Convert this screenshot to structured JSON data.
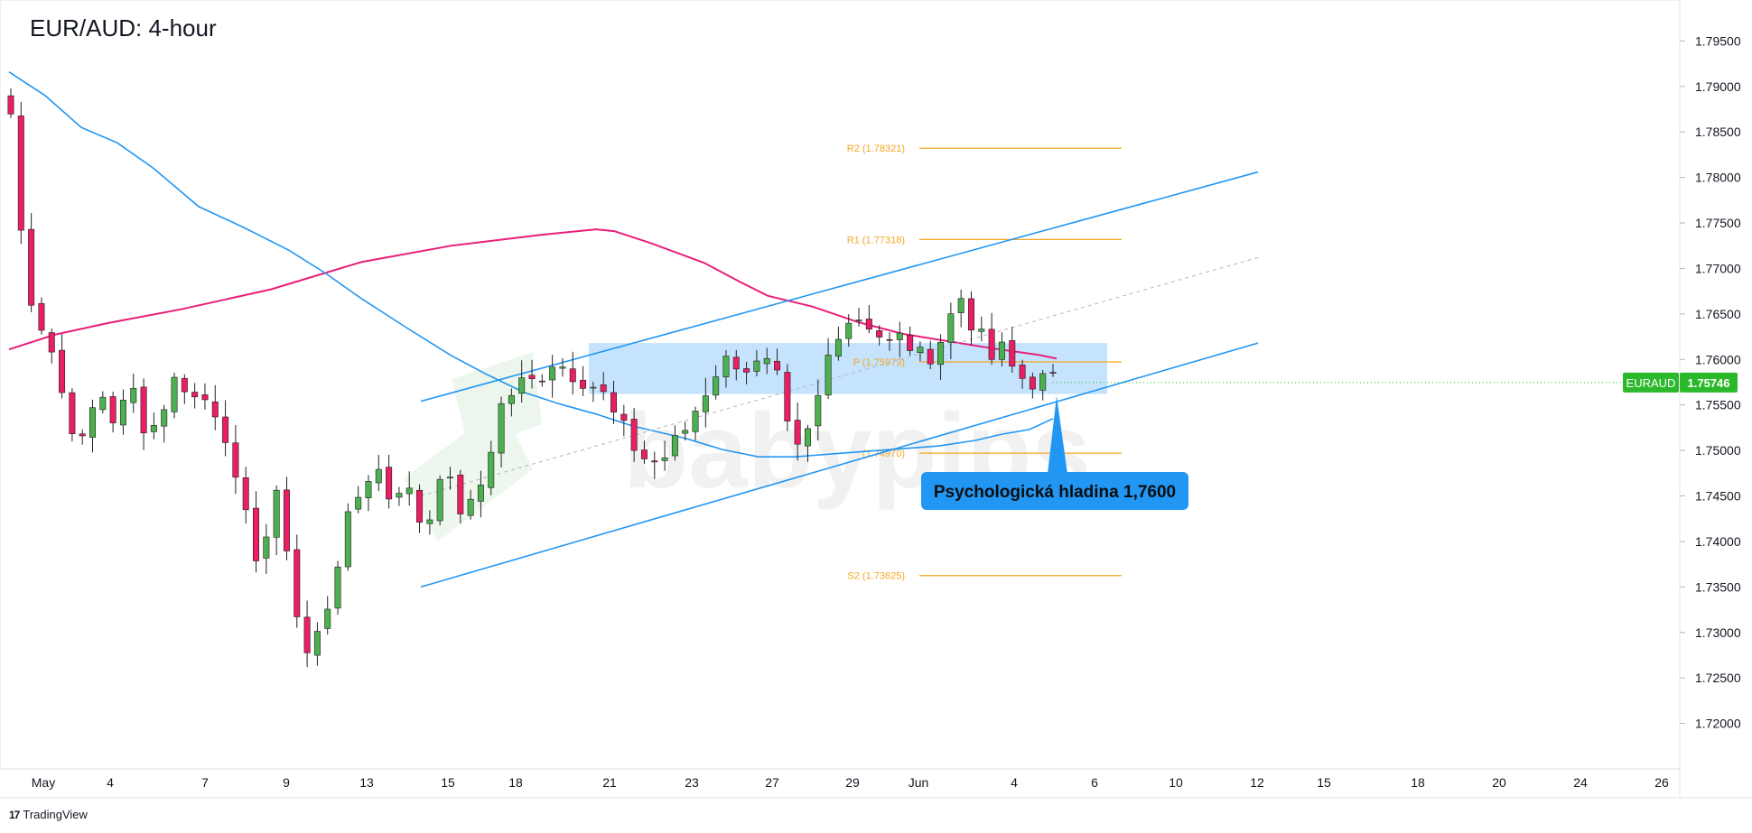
{
  "chart_data": {
    "type": "candlestick",
    "title": "EUR/AUD: 4-hour",
    "symbol_label": "EURAUD",
    "last_price": "1.75746",
    "ylim": [
      1.715,
      1.7995
    ],
    "y_ticks": [
      "1.72000",
      "1.72500",
      "1.73000",
      "1.73500",
      "1.74000",
      "1.74500",
      "1.75000",
      "1.75500",
      "1.76000",
      "1.76500",
      "1.77000",
      "1.77500",
      "1.78000",
      "1.78500",
      "1.79000",
      "1.79500"
    ],
    "x_ticks": [
      "May",
      "4",
      "7",
      "9",
      "13",
      "15",
      "18",
      "21",
      "23",
      "27",
      "29",
      "Jun",
      "4",
      "6",
      "10",
      "12",
      "15",
      "18",
      "20",
      "24",
      "26"
    ],
    "pivot_levels": [
      {
        "label": "R2 (1.78321)",
        "value": 1.78321
      },
      {
        "label": "R1 (1.77318)",
        "value": 1.77318
      },
      {
        "label": "P (1.75973)",
        "value": 1.75973
      },
      {
        "label": "(1.74970)",
        "value": 1.7497
      },
      {
        "label": "S2 (1.73625)",
        "value": 1.73625
      }
    ],
    "annotation": "Psychologická hladina 1,7600",
    "resistance_zone": [
      1.7562,
      1.7618
    ],
    "watermark": "babypips",
    "colors": {
      "up": "#4caf50",
      "down": "#e91e63",
      "ema_fast": "#2196f3",
      "ema_slow": "#e91e7a",
      "channel": "#2196f3",
      "pivot": "#f5a623",
      "zone": "#bbdefb",
      "price_tag": "#2bb92b"
    }
  },
  "footer": {
    "brand": "TradingView",
    "logo": "17"
  }
}
